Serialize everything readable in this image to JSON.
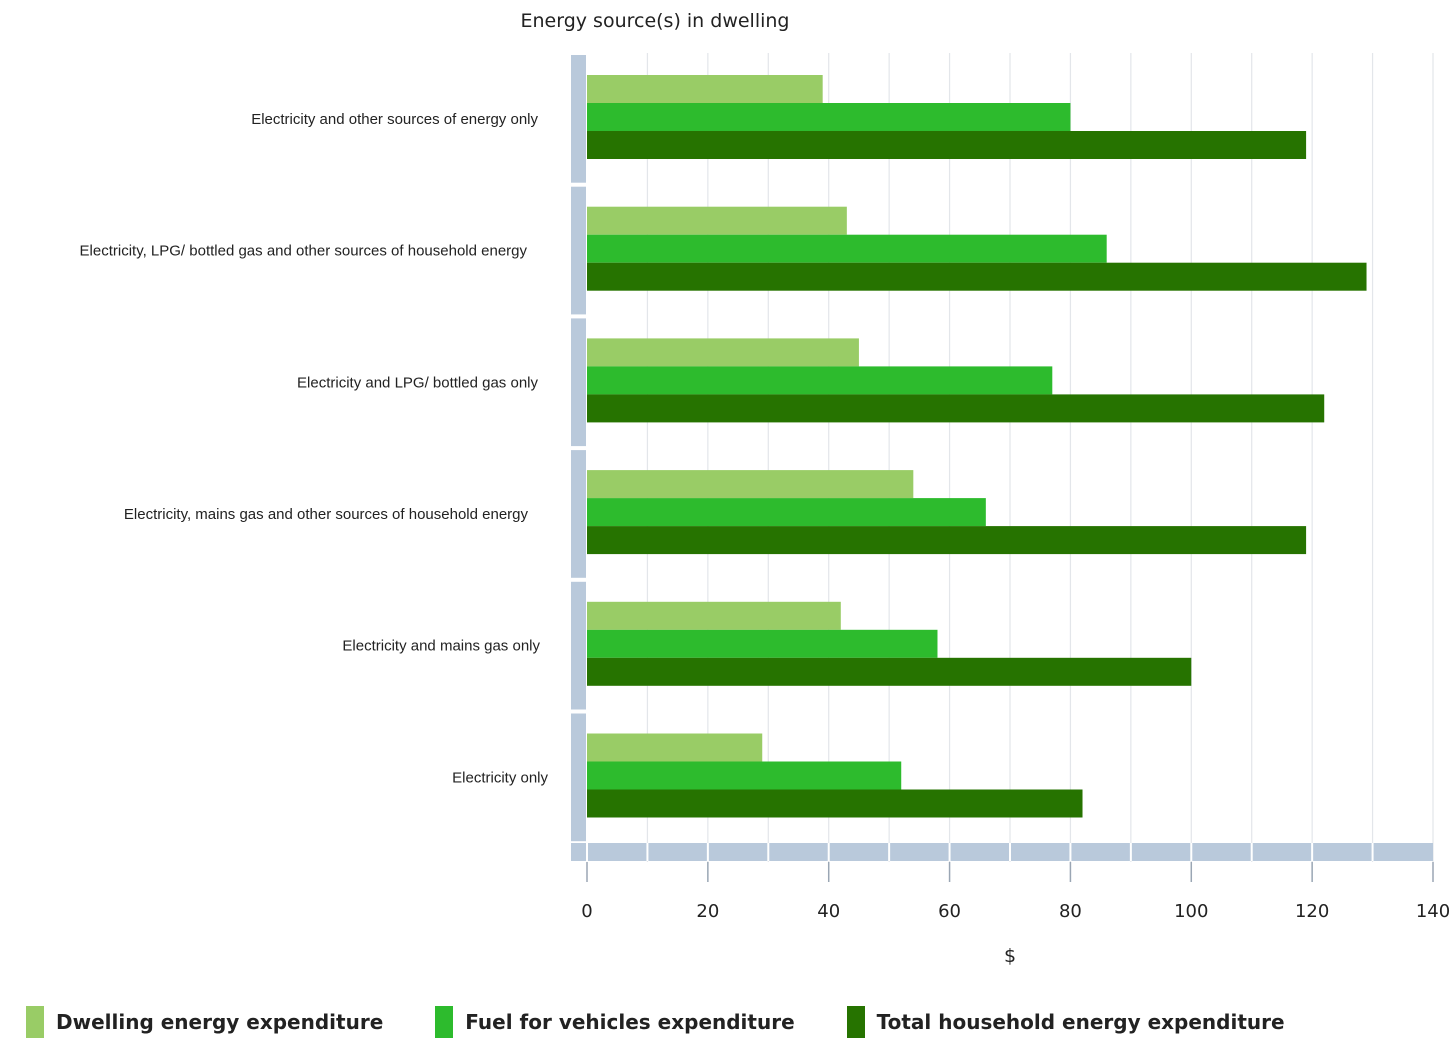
{
  "chart_data": {
    "type": "bar",
    "orientation": "horizontal",
    "title": "Energy source(s) in dwelling",
    "xlabel": "$",
    "xlim": [
      0,
      140
    ],
    "xticks": [
      0,
      20,
      40,
      60,
      80,
      100,
      120,
      140
    ],
    "grid": true,
    "legend_position": "bottom-left",
    "categories": [
      "Electricity and other sources of energy only",
      "Electricity, LPG/ bottled gas and other sources of household energy",
      "Electricity and LPG/ bottled gas only",
      "Electricity, mains gas and other sources of household energy",
      "Electricity and mains gas only",
      "Electricity only"
    ],
    "series": [
      {
        "name": "Dwelling energy expenditure",
        "color": "#99cc66",
        "values": [
          39,
          43,
          45,
          54,
          42,
          29
        ]
      },
      {
        "name": "Fuel for vehicles expenditure",
        "color": "#2dbb2d",
        "values": [
          80,
          86,
          77,
          66,
          58,
          52
        ]
      },
      {
        "name": "Total household energy expenditure",
        "color": "#267300",
        "values": [
          119,
          129,
          122,
          119,
          100,
          82
        ]
      }
    ]
  }
}
